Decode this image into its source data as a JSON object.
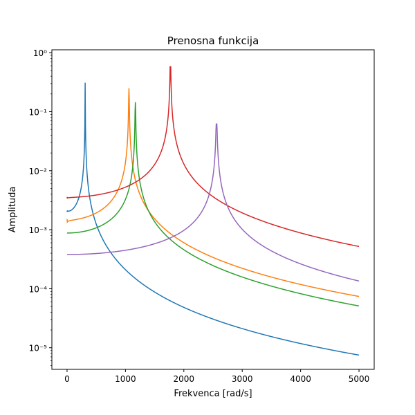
{
  "chart_data": {
    "type": "line",
    "title": "Prenosna funkcija",
    "xlabel": "Frekvenca [rad/s]",
    "ylabel": "Amplituda",
    "xlim": [
      -260,
      5260
    ],
    "ylim": [
      4.3e-06,
      1.12
    ],
    "yscale": "log",
    "grid": false,
    "xticks": [
      0,
      1000,
      2000,
      3000,
      4000,
      5000
    ],
    "xtick_labels": [
      "0",
      "1000",
      "2000",
      "3000",
      "4000",
      "5000"
    ],
    "yticks": [
      1e-05,
      0.0001,
      0.001,
      0.01,
      0.1,
      1
    ],
    "ytick_labels": [
      "10⁻⁵",
      "10⁻⁴",
      "10⁻³",
      "10⁻²",
      "10⁻¹",
      "10⁰"
    ],
    "series": [
      {
        "color": "#1f77b4",
        "x0": 0,
        "y0": 0.002,
        "x1": 5000,
        "y1": 7.5e-06,
        "peak_x": 310,
        "peak_y": 0.31
      },
      {
        "color": "#ff7f0e",
        "x0": 0,
        "y0": 0.00152,
        "x1": 5000,
        "y1": 7.4e-05,
        "peak_x": 1060,
        "peak_y": 0.25
      },
      {
        "color": "#2ca02c",
        "x0": 0,
        "y0": 0.00088,
        "x1": 5000,
        "y1": 5.1e-05,
        "peak_x": 1170,
        "peak_y": 0.145
      },
      {
        "color": "#d62728",
        "x0": 0,
        "y0": 0.0036,
        "x1": 5000,
        "y1": 0.00052,
        "peak_x": 1770,
        "peak_y": 0.58
      },
      {
        "color": "#9467bd",
        "x0": 0,
        "y0": 0.00038,
        "x1": 5000,
        "y1": 0.000135,
        "peak_x": 2560,
        "peak_y": 0.062
      }
    ]
  }
}
